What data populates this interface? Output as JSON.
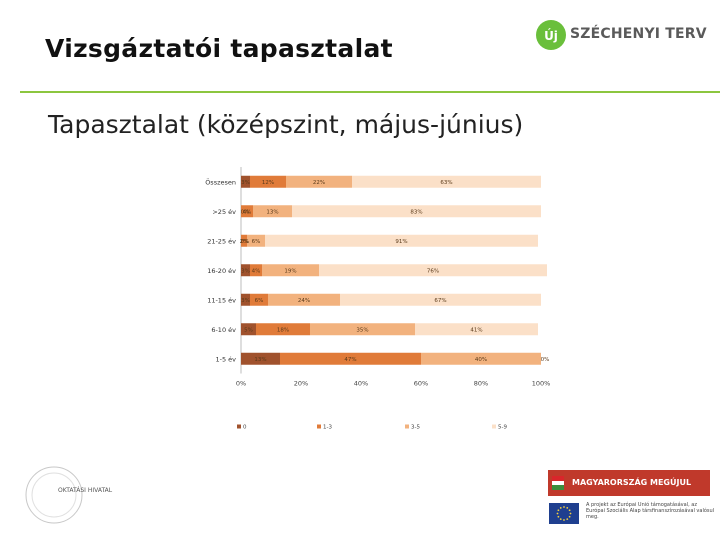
{
  "header": {
    "title": "Vizsgáztatói tapasztalat",
    "logo_text": "SZÉCHENYI TERV",
    "logo_mark": "Új"
  },
  "subtitle": "Tapasztalat (középszint, május-június)",
  "chart_data": {
    "type": "bar",
    "stacked": "percent",
    "orientation": "horizontal",
    "categories": [
      "Összesen",
      ">25 év",
      "21-25 év",
      "16-20 év",
      "11-15 év",
      "6-10 év",
      "1-5 év"
    ],
    "series": [
      {
        "name": "0",
        "color": "#a0522d",
        "values": [
          3,
          0,
          0,
          3,
          3,
          5,
          13
        ],
        "labels": [
          "3%",
          "0%",
          "0%",
          "3%",
          "3%",
          "5%",
          "13%"
        ]
      },
      {
        "name": "1-3",
        "color": "#e07b39",
        "values": [
          12,
          4,
          2,
          4,
          6,
          18,
          47
        ],
        "labels": [
          "12%",
          "4%",
          "2%",
          "4%",
          "6%",
          "18%",
          "47%"
        ]
      },
      {
        "name": "3-5",
        "color": "#f2b27e",
        "values": [
          22,
          13,
          6,
          19,
          24,
          35,
          40
        ],
        "labels": [
          "22%",
          "13%",
          "6%",
          "19%",
          "24%",
          "35%",
          "40%"
        ]
      },
      {
        "name": "5-9",
        "color": "#fbe0c8",
        "values": [
          63,
          83,
          91,
          76,
          67,
          41,
          0
        ],
        "labels": [
          "63%",
          "83%",
          "91%",
          "76%",
          "67%",
          "41%",
          "0%"
        ]
      }
    ],
    "x_ticks": [
      "0%",
      "20%",
      "40%",
      "60%",
      "80%",
      "100%"
    ],
    "xlim": [
      0,
      100
    ],
    "legend_position": "bottom"
  },
  "footer": {
    "seal_text": "OKTATÁSI HIVATAL",
    "banner_text": "MAGYARORSZÁG MEGÚJUL",
    "eu_text": "A projekt az Európai Unió támogatásával, az Európai Szociális Alap társfinanszírozásával valósul meg."
  },
  "colors": {
    "accent": "#8cc63f"
  }
}
